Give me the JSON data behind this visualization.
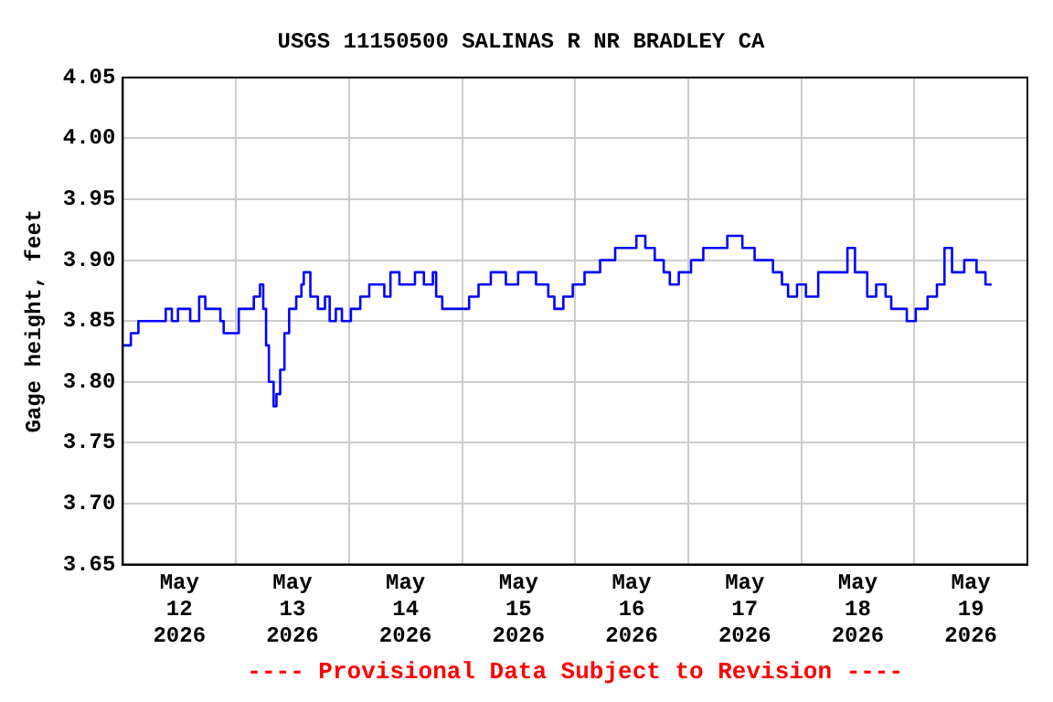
{
  "chart_data": {
    "type": "step",
    "title": "USGS 11150500 SALINAS R NR BRADLEY CA",
    "ylabel": "Gage height, feet",
    "annotations": [
      "---- Provisional Data Subject to Revision ----"
    ],
    "x": [
      "2026-05-12T00:00",
      "2026-05-12T01:42",
      "2026-05-12T03:18",
      "2026-05-12T07:12",
      "2026-05-12T09:06",
      "2026-05-12T10:24",
      "2026-05-12T11:42",
      "2026-05-12T14:18",
      "2026-05-12T16:12",
      "2026-05-12T17:30",
      "2026-05-12T19:24",
      "2026-05-12T20:42",
      "2026-05-12T21:24",
      "2026-05-13T00:00",
      "2026-05-13T00:36",
      "2026-05-13T02:30",
      "2026-05-13T03:48",
      "2026-05-13T05:06",
      "2026-05-13T05:48",
      "2026-05-13T06:24",
      "2026-05-13T07:00",
      "2026-05-13T08:00",
      "2026-05-13T08:36",
      "2026-05-13T09:24",
      "2026-05-13T10:18",
      "2026-05-13T11:18",
      "2026-05-13T12:48",
      "2026-05-13T13:54",
      "2026-05-13T14:24",
      "2026-05-13T15:48",
      "2026-05-13T17:24",
      "2026-05-13T18:54",
      "2026-05-13T19:54",
      "2026-05-13T21:12",
      "2026-05-13T22:30",
      "2026-05-14T00:24",
      "2026-05-14T02:24",
      "2026-05-14T04:18",
      "2026-05-14T07:30",
      "2026-05-14T08:48",
      "2026-05-14T10:42",
      "2026-05-14T14:00",
      "2026-05-14T15:54",
      "2026-05-14T17:48",
      "2026-05-14T18:30",
      "2026-05-14T19:48",
      "2026-05-14T22:18",
      "2026-05-15T01:30",
      "2026-05-15T03:30",
      "2026-05-15T06:06",
      "2026-05-15T09:18",
      "2026-05-15T11:54",
      "2026-05-15T15:42",
      "2026-05-15T18:18",
      "2026-05-15T19:36",
      "2026-05-15T21:30",
      "2026-05-15T23:30",
      "2026-05-16T02:00",
      "2026-05-16T05:18",
      "2026-05-16T08:30",
      "2026-05-16T13:00",
      "2026-05-16T14:54",
      "2026-05-16T16:54",
      "2026-05-16T18:48",
      "2026-05-16T20:06",
      "2026-05-16T22:00",
      "2026-05-17T00:36",
      "2026-05-17T03:12",
      "2026-05-17T06:24",
      "2026-05-17T08:18",
      "2026-05-17T11:30",
      "2026-05-17T14:06",
      "2026-05-17T18:00",
      "2026-05-17T19:54",
      "2026-05-17T21:12",
      "2026-05-17T23:06",
      "2026-05-18T01:00",
      "2026-05-18T03:36",
      "2026-05-18T06:12",
      "2026-05-18T09:48",
      "2026-05-18T11:24",
      "2026-05-18T14:00",
      "2026-05-18T15:54",
      "2026-05-18T17:54",
      "2026-05-18T19:06",
      "2026-05-18T21:42",
      "2026-05-18T22:24",
      "2026-05-19T00:18",
      "2026-05-19T02:48",
      "2026-05-19T04:48",
      "2026-05-19T06:24",
      "2026-05-19T08:00",
      "2026-05-19T10:36",
      "2026-05-19T13:12",
      "2026-05-19T15:06",
      "2026-05-19T16:24"
    ],
    "series": [
      {
        "color": "#0000ff",
        "values": [
          3.83,
          3.84,
          3.85,
          3.85,
          3.86,
          3.85,
          3.86,
          3.85,
          3.87,
          3.86,
          3.86,
          3.85,
          3.84,
          3.84,
          3.86,
          3.86,
          3.87,
          3.88,
          3.86,
          3.83,
          3.8,
          3.78,
          3.79,
          3.81,
          3.84,
          3.86,
          3.87,
          3.88,
          3.89,
          3.87,
          3.86,
          3.87,
          3.85,
          3.86,
          3.85,
          3.86,
          3.87,
          3.88,
          3.87,
          3.89,
          3.88,
          3.89,
          3.88,
          3.89,
          3.87,
          3.86,
          3.86,
          3.87,
          3.88,
          3.89,
          3.88,
          3.89,
          3.88,
          3.87,
          3.86,
          3.87,
          3.88,
          3.89,
          3.9,
          3.91,
          3.92,
          3.91,
          3.9,
          3.89,
          3.88,
          3.89,
          3.9,
          3.91,
          3.91,
          3.92,
          3.91,
          3.9,
          3.89,
          3.88,
          3.87,
          3.88,
          3.87,
          3.89,
          3.89,
          3.91,
          3.89,
          3.87,
          3.88,
          3.87,
          3.86,
          3.86,
          3.85,
          3.86,
          3.87,
          3.88,
          3.91,
          3.89,
          3.9,
          3.89,
          3.88,
          3.88
        ]
      }
    ],
    "xlim": [
      "2026-05-12T00:00",
      "2026-05-20T00:00"
    ],
    "xticks": [
      {
        "value": "2026-05-12T00:00",
        "label": null
      },
      {
        "value": "2026-05-12T12:00",
        "label": "May\n12\n2026"
      },
      {
        "value": "2026-05-13T00:00",
        "label": null
      },
      {
        "value": "2026-05-13T12:00",
        "label": "May\n13\n2026"
      },
      {
        "value": "2026-05-14T00:00",
        "label": null
      },
      {
        "value": "2026-05-14T12:00",
        "label": "May\n14\n2026"
      },
      {
        "value": "2026-05-15T00:00",
        "label": null
      },
      {
        "value": "2026-05-15T12:00",
        "label": "May\n15\n2026"
      },
      {
        "value": "2026-05-16T00:00",
        "label": null
      },
      {
        "value": "2026-05-16T12:00",
        "label": "May\n16\n2026"
      },
      {
        "value": "2026-05-17T00:00",
        "label": null
      },
      {
        "value": "2026-05-17T12:00",
        "label": "May\n17\n2026"
      },
      {
        "value": "2026-05-18T00:00",
        "label": null
      },
      {
        "value": "2026-05-18T12:00",
        "label": "May\n18\n2026"
      },
      {
        "value": "2026-05-19T00:00",
        "label": null
      },
      {
        "value": "2026-05-19T12:00",
        "label": "May\n19\n2026"
      },
      {
        "value": "2026-05-20T00:00",
        "label": null
      }
    ],
    "ylim": [
      3.65,
      4.05
    ],
    "yticks": [
      3.65,
      {
        "value": 3.7,
        "label": "3.70"
      },
      3.75,
      {
        "value": 3.8,
        "label": "3.80"
      },
      3.85,
      {
        "value": 3.9,
        "label": "3.90"
      },
      3.95,
      {
        "value": 4,
        "label": "4.00"
      },
      4.05
    ],
    "grid": true,
    "legend": false,
    "marker": "none",
    "line_style": "solid"
  }
}
